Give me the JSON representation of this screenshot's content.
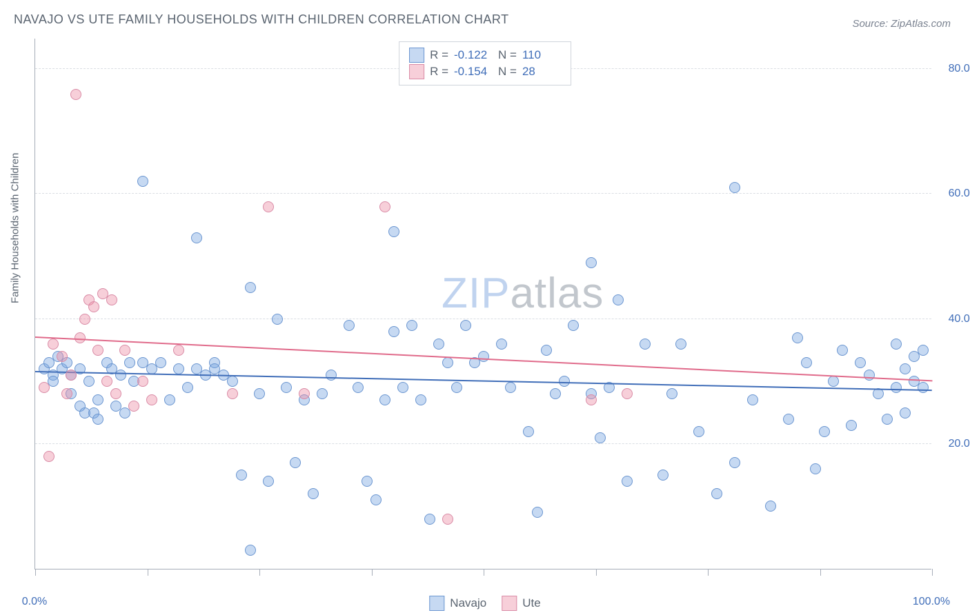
{
  "title": "NAVAJO VS UTE FAMILY HOUSEHOLDS WITH CHILDREN CORRELATION CHART",
  "source": "Source: ZipAtlas.com",
  "y_axis_label": "Family Households with Children",
  "watermark_a": "ZIP",
  "watermark_b": "atlas",
  "chart": {
    "type": "scatter",
    "xlim": [
      0,
      100
    ],
    "ylim": [
      0,
      85
    ],
    "x_ticks": [
      0,
      12.5,
      25,
      37.5,
      50,
      62.5,
      75,
      87.5,
      100
    ],
    "x_tick_labels": {
      "0": "0.0%",
      "100": "100.0%"
    },
    "y_grid": [
      20,
      40,
      60,
      80
    ],
    "y_tick_labels": {
      "20": "20.0%",
      "40": "40.0%",
      "60": "60.0%",
      "80": "80.0%"
    },
    "background_color": "#ffffff",
    "grid_color": "#d9dde3",
    "axis_color": "#a6adb8",
    "label_color": "#3f6db8",
    "point_radius": 8,
    "series": [
      {
        "name": "Navajo",
        "fill": "rgba(120,165,225,0.42)",
        "stroke": "#6a95d0",
        "reg_color": "#3f6db8",
        "reg": {
          "x1": 0,
          "y1": 31.5,
          "x2": 100,
          "y2": 28.5
        },
        "R": "-0.122",
        "N": "110",
        "points": [
          [
            1,
            32
          ],
          [
            1.5,
            33
          ],
          [
            2,
            31
          ],
          [
            2,
            30
          ],
          [
            2.5,
            34
          ],
          [
            3,
            32
          ],
          [
            3.5,
            33
          ],
          [
            4,
            31
          ],
          [
            4,
            28
          ],
          [
            5,
            32
          ],
          [
            5,
            26
          ],
          [
            5.5,
            25
          ],
          [
            6,
            30
          ],
          [
            6.5,
            25
          ],
          [
            7,
            27
          ],
          [
            7,
            24
          ],
          [
            8,
            33
          ],
          [
            8.5,
            32
          ],
          [
            9,
            26
          ],
          [
            9.5,
            31
          ],
          [
            10,
            25
          ],
          [
            10.5,
            33
          ],
          [
            11,
            30
          ],
          [
            12,
            62
          ],
          [
            12,
            33
          ],
          [
            13,
            32
          ],
          [
            14,
            33
          ],
          [
            15,
            27
          ],
          [
            16,
            32
          ],
          [
            17,
            29
          ],
          [
            18,
            53
          ],
          [
            18,
            32
          ],
          [
            19,
            31
          ],
          [
            20,
            33
          ],
          [
            20,
            32
          ],
          [
            21,
            31
          ],
          [
            22,
            30
          ],
          [
            23,
            15
          ],
          [
            24,
            45
          ],
          [
            24,
            3
          ],
          [
            25,
            28
          ],
          [
            26,
            14
          ],
          [
            27,
            40
          ],
          [
            28,
            29
          ],
          [
            29,
            17
          ],
          [
            30,
            27
          ],
          [
            31,
            12
          ],
          [
            32,
            28
          ],
          [
            33,
            31
          ],
          [
            35,
            39
          ],
          [
            36,
            29
          ],
          [
            37,
            14
          ],
          [
            38,
            11
          ],
          [
            39,
            27
          ],
          [
            40,
            54
          ],
          [
            40,
            38
          ],
          [
            41,
            29
          ],
          [
            42,
            39
          ],
          [
            43,
            27
          ],
          [
            44,
            8
          ],
          [
            45,
            36
          ],
          [
            46,
            33
          ],
          [
            47,
            29
          ],
          [
            48,
            39
          ],
          [
            49,
            33
          ],
          [
            50,
            34
          ],
          [
            52,
            36
          ],
          [
            53,
            29
          ],
          [
            55,
            22
          ],
          [
            56,
            9
          ],
          [
            57,
            35
          ],
          [
            58,
            28
          ],
          [
            59,
            30
          ],
          [
            60,
            39
          ],
          [
            62,
            49
          ],
          [
            62,
            28
          ],
          [
            63,
            21
          ],
          [
            64,
            29
          ],
          [
            65,
            43
          ],
          [
            66,
            14
          ],
          [
            68,
            36
          ],
          [
            70,
            15
          ],
          [
            71,
            28
          ],
          [
            72,
            36
          ],
          [
            74,
            22
          ],
          [
            76,
            12
          ],
          [
            78,
            61
          ],
          [
            78,
            17
          ],
          [
            80,
            27
          ],
          [
            82,
            10
          ],
          [
            84,
            24
          ],
          [
            85,
            37
          ],
          [
            86,
            33
          ],
          [
            87,
            16
          ],
          [
            88,
            22
          ],
          [
            89,
            30
          ],
          [
            90,
            35
          ],
          [
            91,
            23
          ],
          [
            92,
            33
          ],
          [
            93,
            31
          ],
          [
            94,
            28
          ],
          [
            95,
            24
          ],
          [
            96,
            29
          ],
          [
            96,
            36
          ],
          [
            97,
            32
          ],
          [
            97,
            25
          ],
          [
            98,
            34
          ],
          [
            98,
            30
          ],
          [
            99,
            29
          ],
          [
            99,
            35
          ]
        ]
      },
      {
        "name": "Ute",
        "fill": "rgba(235,140,165,0.42)",
        "stroke": "#d98aa5",
        "reg_color": "#e06a8a",
        "reg": {
          "x1": 0,
          "y1": 37,
          "x2": 100,
          "y2": 30
        },
        "R": "-0.154",
        "N": "28",
        "points": [
          [
            1,
            29
          ],
          [
            1.5,
            18
          ],
          [
            2,
            36
          ],
          [
            3,
            34
          ],
          [
            3.5,
            28
          ],
          [
            4,
            31
          ],
          [
            4.5,
            76
          ],
          [
            5,
            37
          ],
          [
            5.5,
            40
          ],
          [
            6,
            43
          ],
          [
            6.5,
            42
          ],
          [
            7,
            35
          ],
          [
            7.5,
            44
          ],
          [
            8,
            30
          ],
          [
            8.5,
            43
          ],
          [
            9,
            28
          ],
          [
            10,
            35
          ],
          [
            11,
            26
          ],
          [
            12,
            30
          ],
          [
            13,
            27
          ],
          [
            16,
            35
          ],
          [
            22,
            28
          ],
          [
            26,
            58
          ],
          [
            30,
            28
          ],
          [
            39,
            58
          ],
          [
            46,
            8
          ],
          [
            62,
            27
          ],
          [
            66,
            28
          ]
        ]
      }
    ]
  },
  "legend": {
    "navajo": "Navajo",
    "ute": "Ute"
  },
  "stats_labels": {
    "r": "R =",
    "n": "N ="
  }
}
